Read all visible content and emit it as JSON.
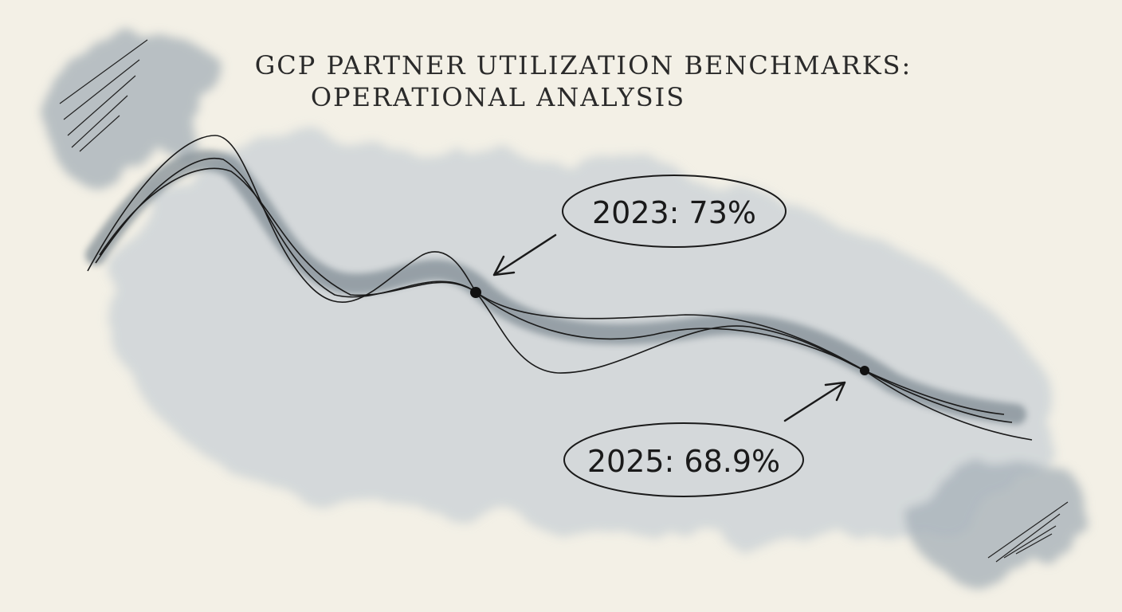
{
  "title": {
    "lines": [
      "GCP PARTNER UTILIZATION BENCHMARKS:",
      "OPERATIONAL ANALYSIS"
    ]
  },
  "annotations": [
    {
      "label": "2023: 73%"
    },
    {
      "label": "2025: 68.9%"
    }
  ]
}
